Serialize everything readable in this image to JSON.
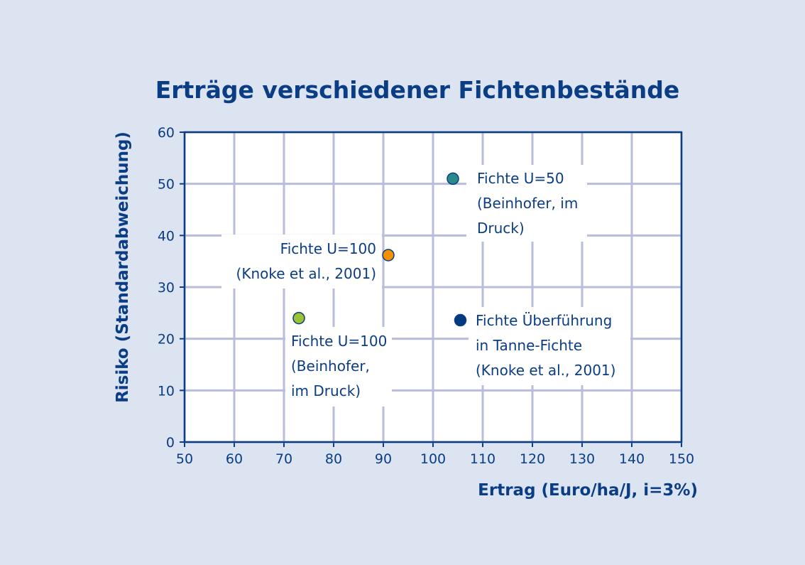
{
  "chart_data": {
    "type": "scatter",
    "title": "Erträge verschiedener Fichtenbestände",
    "xlabel": "Ertrag (Euro/ha/J, i=3%)",
    "ylabel": "Risiko (Standardabweichung)",
    "xlim": [
      50,
      150
    ],
    "ylim": [
      0,
      60
    ],
    "xticks": [
      50,
      60,
      70,
      80,
      90,
      100,
      110,
      120,
      130,
      140,
      150
    ],
    "yticks": [
      0,
      10,
      20,
      30,
      40,
      50,
      60
    ],
    "grid": true,
    "points": [
      {
        "x": 104,
        "y": 51,
        "label": [
          "Fichte U=50",
          "(Beinhofer, im",
          "Druck)"
        ],
        "color": "#2a8a8a"
      },
      {
        "x": 91,
        "y": 36.2,
        "label": [
          "Fichte U=100",
          "(Knoke et al., 2001)"
        ],
        "color": "#f29104"
      },
      {
        "x": 73,
        "y": 24,
        "label": [
          "Fichte U=100",
          "(Beinhofer,",
          "im Druck)"
        ],
        "color": "#9bc333"
      },
      {
        "x": 105.5,
        "y": 23.6,
        "label": [
          "Fichte Überführung",
          "in Tanne-Fichte",
          "(Knoke et al., 2001)"
        ],
        "color": "#003a80"
      }
    ]
  }
}
